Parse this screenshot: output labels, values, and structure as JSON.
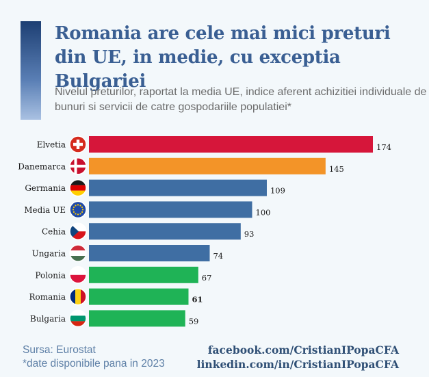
{
  "title": "Romania are cele mai mici preturi din UE, in medie, cu exceptia Bulgariei",
  "subtitle": "Nivelul preturilor, raportat la media UE, indice aferent achizitiei individuale de bunuri si servicii de catre gospodariile populatiei*",
  "footer": {
    "source": "Sursa: Eurostat",
    "note": "*date disponibile pana in 2023",
    "facebook": "facebook.com/CristianIPopaCFA",
    "linkedin": "linkedin.com/in/CristianIPopaCFA"
  },
  "chart_data": {
    "type": "bar",
    "orientation": "horizontal",
    "categories": [
      "Elvetia",
      "Danemarca",
      "Germania",
      "Media UE",
      "Cehia",
      "Ungaria",
      "Polonia",
      "Romania",
      "Bulgaria"
    ],
    "values": [
      174,
      145,
      109,
      100,
      93,
      74,
      67,
      61,
      59
    ],
    "colors": [
      "#d6163a",
      "#f39428",
      "#3f6ea3",
      "#3f6ea3",
      "#3f6ea3",
      "#3f6ea3",
      "#1fb356",
      "#1fb356",
      "#1fb356"
    ],
    "flags": [
      "swiss-flag-icon",
      "danish-flag-icon",
      "german-flag-icon",
      "eu-flag-icon",
      "czech-flag-icon",
      "hungarian-flag-icon",
      "polish-flag-icon",
      "romanian-flag-icon",
      "bulgarian-flag-icon"
    ],
    "bold_labels": [
      "Romania"
    ],
    "xlim": [
      0,
      174
    ],
    "grid": false,
    "legend": "none"
  }
}
